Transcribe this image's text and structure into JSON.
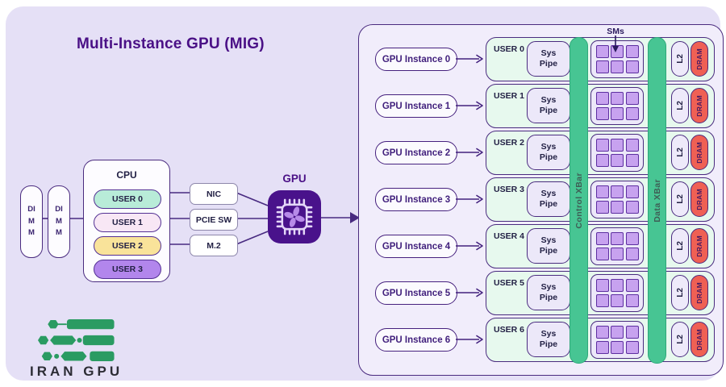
{
  "title": "Multi-Instance GPU (MIG)",
  "colors": {
    "background": "#e5e0f6",
    "deep_purple": "#4a1086",
    "border_purple": "#4a2b7f",
    "navy_text": "#232145",
    "panel_fill": "#f1edfb",
    "row_mint": "#e7f9ee",
    "xbar_green": "#47c593",
    "sm_purple": "#c7a2ef",
    "dram_red": "#ef6054",
    "user0_pill": "#b8ecd8",
    "user1_pill": "#f8e7f5",
    "user2_pill": "#f9e39a",
    "user3_pill": "#b286ec",
    "logo_green": "#2a9b62"
  },
  "left": {
    "dimm_label": "DIMM",
    "cpu": {
      "label": "CPU",
      "users": [
        {
          "label": "USER 0"
        },
        {
          "label": "USER 1"
        },
        {
          "label": "USER 2"
        },
        {
          "label": "USER 3"
        }
      ]
    },
    "peripherals": {
      "nic": "NIC",
      "pcie": "PCIE SW",
      "m2": "M.2"
    },
    "gpu_label": "GPU"
  },
  "panel": {
    "sms_label": "SMs",
    "control_xbar": "Control XBar",
    "data_xbar": "Data XBar",
    "sm_per_instance": 6,
    "labels": {
      "sys_pipe": "Sys Pipe",
      "l2": "L2",
      "dram": "DRAM"
    },
    "rows": [
      {
        "instance": "GPU Instance 0",
        "user": "USER 0"
      },
      {
        "instance": "GPU Instance 1",
        "user": "USER 1"
      },
      {
        "instance": "GPU Instance 2",
        "user": "USER 2"
      },
      {
        "instance": "GPU Instance 3",
        "user": "USER 3"
      },
      {
        "instance": "GPU Instance 4",
        "user": "USER 4"
      },
      {
        "instance": "GPU Instance 5",
        "user": "USER 5"
      },
      {
        "instance": "GPU Instance 6",
        "user": "USER 6"
      }
    ]
  },
  "logo": {
    "text": "IRAN GPU"
  }
}
